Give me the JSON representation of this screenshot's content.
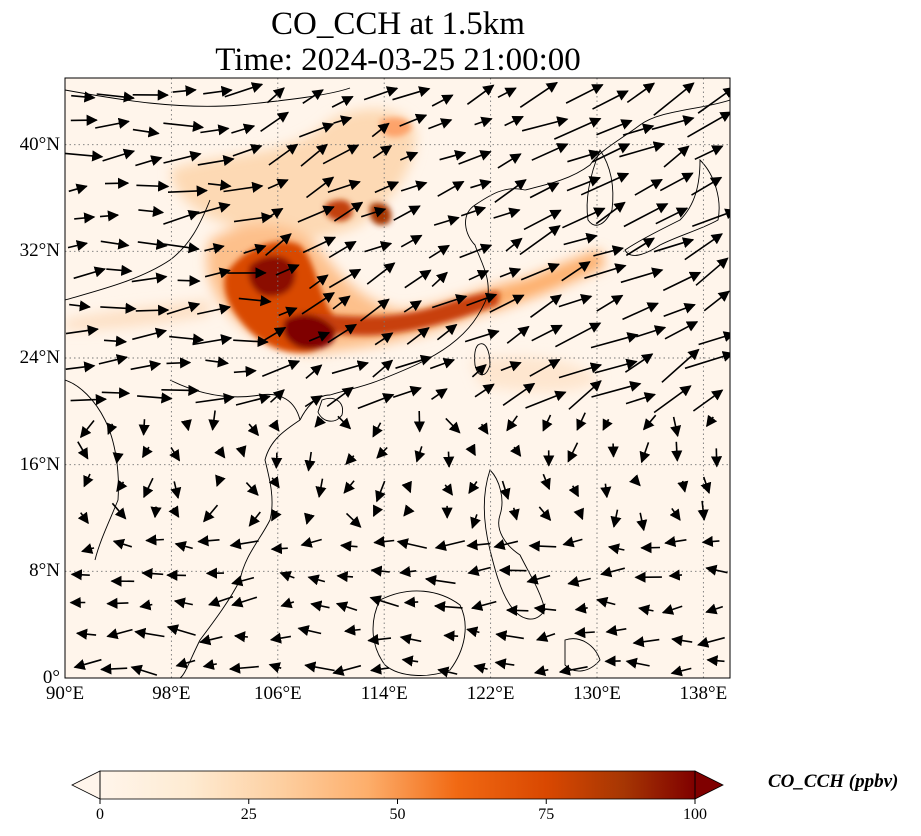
{
  "title_line1": "CO_CCH at 1.5km",
  "title_line2": "Time: 2024-03-25 21:00:00",
  "map": {
    "lon_range": [
      90,
      140
    ],
    "lat_range": [
      0,
      45
    ],
    "gridlines": true,
    "lon_ticks": [
      {
        "value": 90,
        "label": "90°E"
      },
      {
        "value": 98,
        "label": "98°E"
      },
      {
        "value": 106,
        "label": "106°E"
      },
      {
        "value": 114,
        "label": "114°E"
      },
      {
        "value": 122,
        "label": "122°E"
      },
      {
        "value": 130,
        "label": "130°E"
      },
      {
        "value": 138,
        "label": "138°E"
      }
    ],
    "lat_ticks": [
      {
        "value": 0,
        "label": "0°"
      },
      {
        "value": 8,
        "label": "8°N"
      },
      {
        "value": 16,
        "label": "16°N"
      },
      {
        "value": 24,
        "label": "24°N"
      },
      {
        "value": 32,
        "label": "32°N"
      },
      {
        "value": 40,
        "label": "40°N"
      }
    ],
    "field_colors": [
      "#fff5eb",
      "#fdd0a2",
      "#fd8d3c",
      "#d94801",
      "#a63603",
      "#7f0000"
    ]
  },
  "colorbar": {
    "label": "CO_CCH (ppbv)",
    "range": [
      0,
      100
    ],
    "extend": "both",
    "ticks": [
      {
        "value": 0,
        "label": "0"
      },
      {
        "value": 25,
        "label": "25"
      },
      {
        "value": 50,
        "label": "50"
      },
      {
        "value": 75,
        "label": "75"
      },
      {
        "value": 100,
        "label": "100"
      }
    ]
  }
}
